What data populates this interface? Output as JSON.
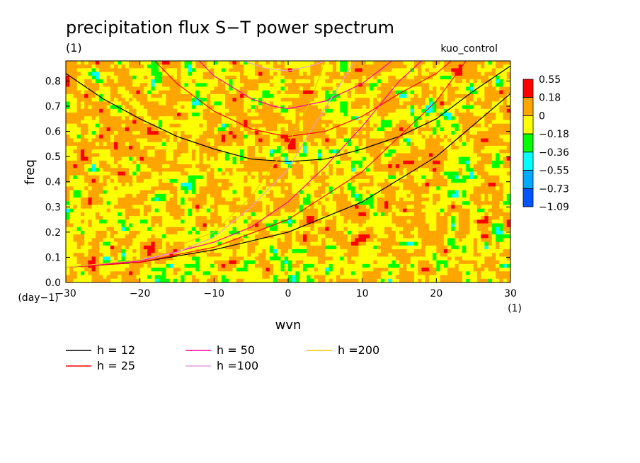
{
  "chart_data": {
    "type": "heatmap",
    "title": "precipitation flux S−T power spectrum",
    "subtitle": "(1)",
    "experiment": "kuo_control",
    "xlabel": "wvn",
    "x_unit": "(1)",
    "ylabel": "freq",
    "y_unit": "(day−1)",
    "xlim": [
      -30,
      30
    ],
    "ylim": [
      0,
      0.88
    ],
    "x_ticks": [
      "−30",
      "−20",
      "−10",
      "0",
      "10",
      "20",
      "30"
    ],
    "y_ticks": [
      "0.0",
      "0.1",
      "0.2",
      "0.3",
      "0.4",
      "0.5",
      "0.6",
      "0.7",
      "0.8"
    ],
    "colorbar": {
      "labels": [
        "0.55",
        "0.18",
        "0",
        "−0.18",
        "−0.36",
        "−0.55",
        "−0.73",
        "−1.09"
      ],
      "colors": [
        "#ff0000",
        "#ffa500",
        "#ffff00",
        "#00ff00",
        "#00ffff",
        "#00aaff",
        "#0055ff"
      ]
    },
    "field_category_fractions": {
      "red": 0.02,
      "orange": 0.44,
      "yellow": 0.46,
      "green": 0.07,
      "cyan": 0.01
    },
    "series": [
      {
        "name": "h = 12",
        "color": "#000000"
      },
      {
        "name": "h = 25",
        "color": "#ff0000"
      },
      {
        "name": "h = 50",
        "color": "#ff00aa"
      },
      {
        "name": "h =100",
        "color": "#e0a0e0"
      },
      {
        "name": "h =200",
        "color": "#e8c800"
      }
    ],
    "curves": [
      {
        "series": 0,
        "kind": "inertia_gravity",
        "points": [
          [
            -30,
            0.83
          ],
          [
            -25,
            0.73
          ],
          [
            -20,
            0.65
          ],
          [
            -15,
            0.58
          ],
          [
            -10,
            0.53
          ],
          [
            -5,
            0.49
          ],
          [
            0,
            0.48
          ],
          [
            5,
            0.49
          ],
          [
            10,
            0.53
          ],
          [
            15,
            0.58
          ],
          [
            20,
            0.65
          ],
          [
            25,
            0.76
          ],
          [
            30,
            0.86
          ]
        ]
      },
      {
        "series": 1,
        "kind": "inertia_gravity",
        "points": [
          [
            -18,
            0.88
          ],
          [
            -15,
            0.79
          ],
          [
            -10,
            0.68
          ],
          [
            -5,
            0.61
          ],
          [
            -2,
            0.59
          ],
          [
            0,
            0.58
          ],
          [
            5,
            0.6
          ],
          [
            10,
            0.66
          ],
          [
            15,
            0.75
          ],
          [
            20,
            0.83
          ],
          [
            22,
            0.88
          ]
        ]
      },
      {
        "series": 2,
        "kind": "inertia_gravity",
        "points": [
          [
            -12,
            0.88
          ],
          [
            -10,
            0.82
          ],
          [
            -5,
            0.73
          ],
          [
            -2,
            0.7
          ],
          [
            0,
            0.69
          ],
          [
            5,
            0.72
          ],
          [
            10,
            0.79
          ],
          [
            14,
            0.88
          ]
        ]
      },
      {
        "series": 3,
        "kind": "inertia_gravity",
        "points": [
          [
            -6,
            0.88
          ],
          [
            -3,
            0.85
          ],
          [
            0,
            0.84
          ],
          [
            3,
            0.86
          ],
          [
            5,
            0.88
          ]
        ]
      },
      {
        "series": 0,
        "kind": "kelvin",
        "points": [
          [
            -30,
            0.06
          ],
          [
            -20,
            0.08
          ],
          [
            -10,
            0.13
          ],
          [
            0,
            0.2
          ],
          [
            10,
            0.32
          ],
          [
            20,
            0.5
          ],
          [
            30,
            0.75
          ]
        ]
      },
      {
        "series": 1,
        "kind": "kelvin",
        "points": [
          [
            -30,
            0.06
          ],
          [
            -20,
            0.08
          ],
          [
            -10,
            0.14
          ],
          [
            0,
            0.25
          ],
          [
            10,
            0.44
          ],
          [
            20,
            0.72
          ],
          [
            24,
            0.88
          ]
        ]
      },
      {
        "series": 2,
        "kind": "kelvin",
        "points": [
          [
            -30,
            0.06
          ],
          [
            -20,
            0.085
          ],
          [
            -10,
            0.16
          ],
          [
            -5,
            0.22
          ],
          [
            0,
            0.32
          ],
          [
            5,
            0.46
          ],
          [
            10,
            0.62
          ],
          [
            15,
            0.8
          ],
          [
            18,
            0.88
          ]
        ]
      },
      {
        "series": 3,
        "kind": "kelvin",
        "points": [
          [
            -30,
            0.06
          ],
          [
            -20,
            0.09
          ],
          [
            -15,
            0.12
          ],
          [
            -10,
            0.18
          ],
          [
            -5,
            0.3
          ],
          [
            0,
            0.45
          ],
          [
            3,
            0.6
          ],
          [
            6,
            0.74
          ],
          [
            9,
            0.88
          ]
        ]
      },
      {
        "series": 4,
        "kind": "kelvin",
        "points": [
          [
            -30,
            0.06
          ],
          [
            -20,
            0.09
          ],
          [
            -10,
            0.2
          ],
          [
            -5,
            0.34
          ],
          [
            0,
            0.55
          ],
          [
            3,
            0.72
          ],
          [
            5,
            0.88
          ]
        ]
      }
    ],
    "grid": false,
    "legend_placement": "bottom-left"
  }
}
